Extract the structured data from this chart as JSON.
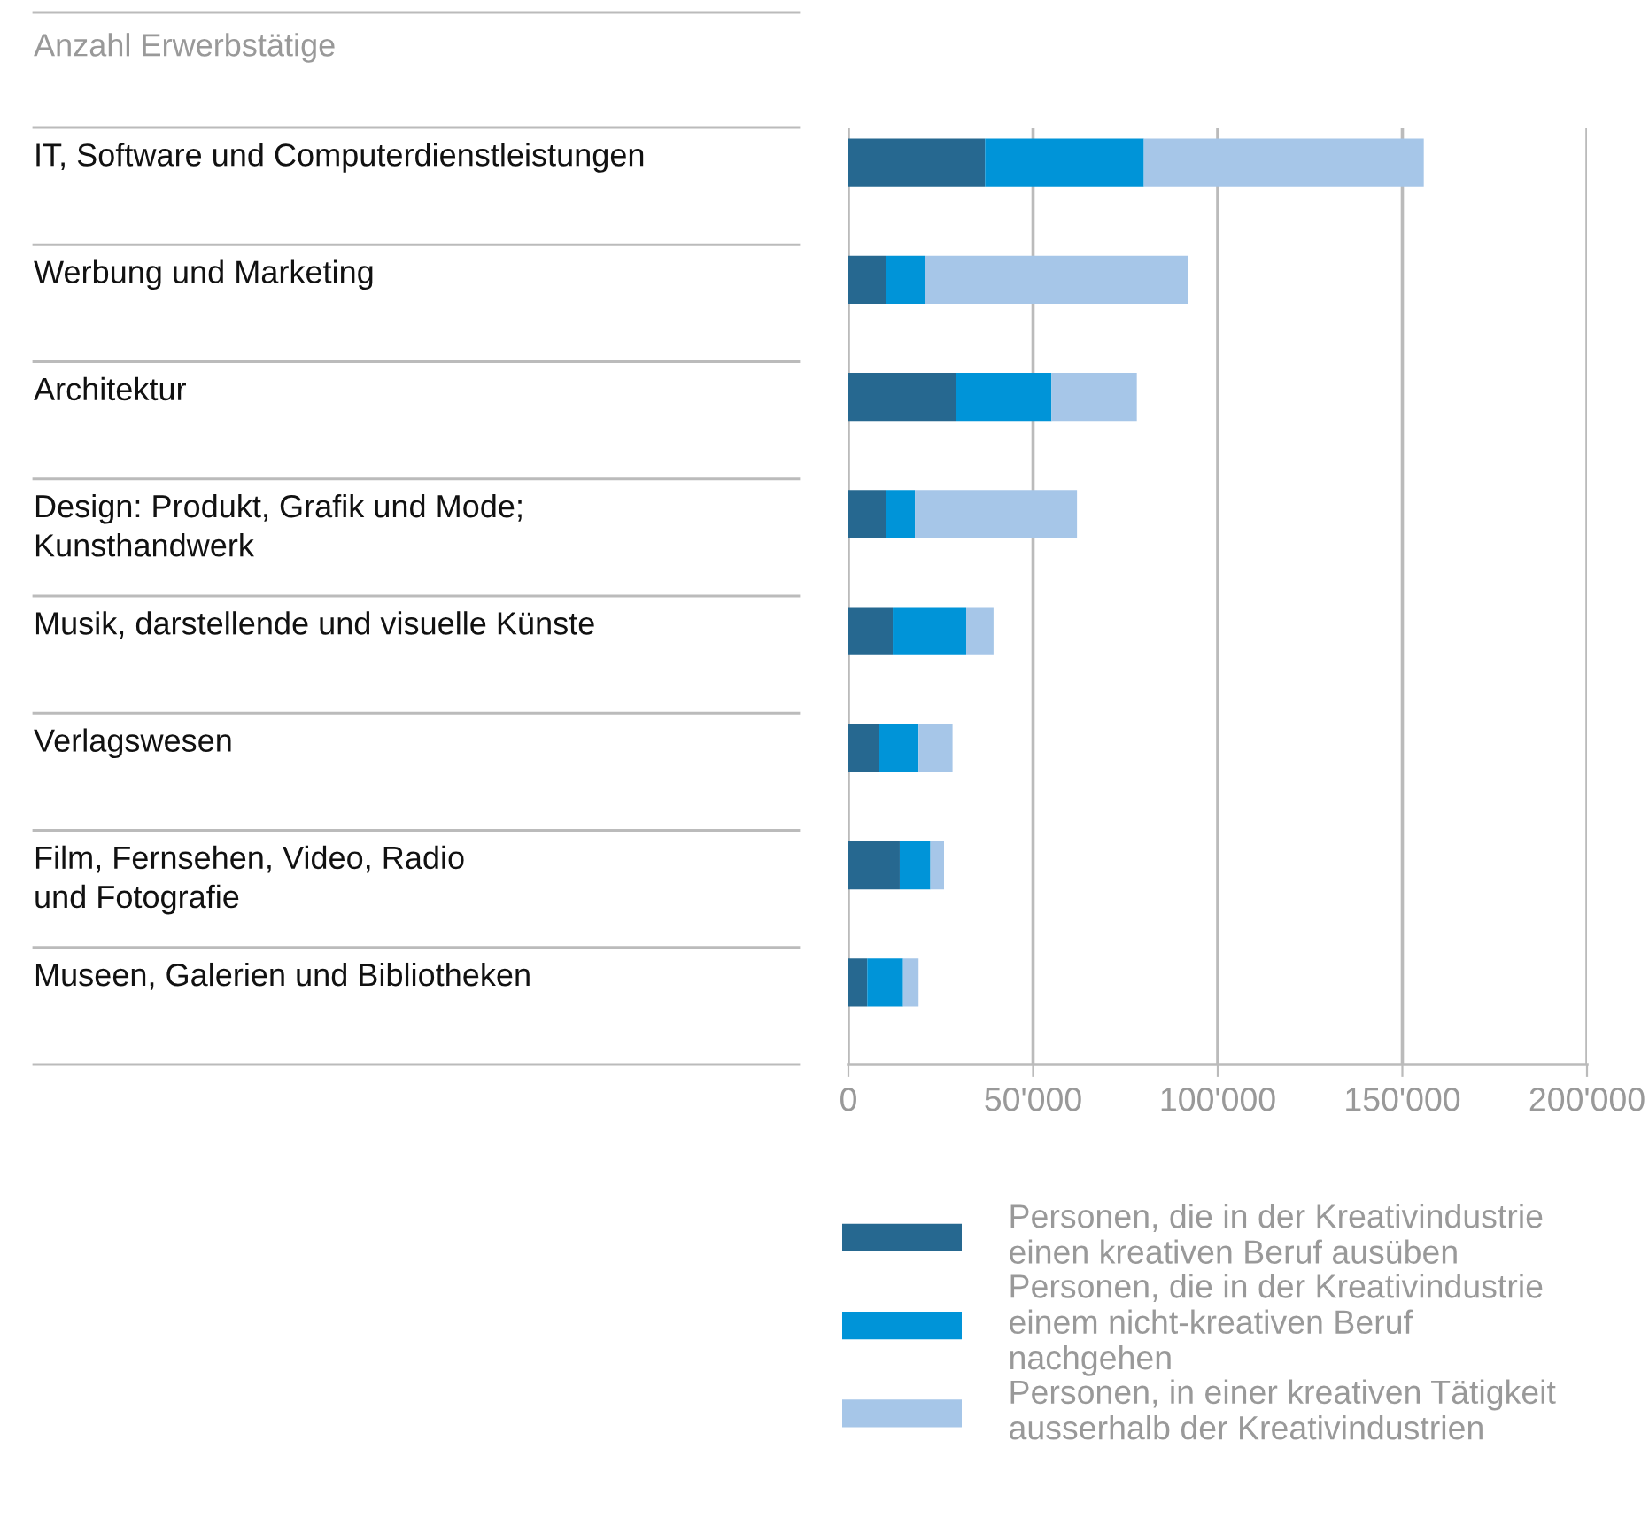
{
  "chart_data": {
    "type": "bar",
    "orientation": "horizontal",
    "stacked": true,
    "title": "Anzahl Erwerbstätige",
    "categories": [
      "IT, Software und Computerdienstleistungen",
      "Werbung und Marketing",
      "Architektur",
      "Design: Produkt, Grafik und Mode;\nKunsthandwerk",
      "Musik, darstellende und visuelle Künste",
      "Verlagswesen",
      "Film, Fernsehen, Video, Radio\nund Fotografie",
      "Museen, Galerien und Bibliotheken"
    ],
    "series": [
      {
        "name": "Personen, die in der Kreativindustrie\neinen kreativen Beruf ausüben",
        "color": "#266890",
        "values": [
          37000,
          10200,
          29100,
          10200,
          12000,
          8300,
          13900,
          5100
        ]
      },
      {
        "name": "Personen, die in der Kreativindustrie\neinem nicht-kreativen Beruf\nnachgehen",
        "color": "#0094d8",
        "values": [
          43000,
          10600,
          25900,
          7800,
          19900,
          10700,
          8300,
          9700
        ]
      },
      {
        "name": "Personen, in einer kreativen Tätigkeit\nausserhalb der Kreativindustrien",
        "color": "#a6c6e8",
        "values": [
          75800,
          71200,
          23100,
          43900,
          7400,
          9200,
          3700,
          4200
        ]
      }
    ],
    "xlim": [
      0,
      200000
    ],
    "xticks": [
      0,
      {
        "value": 50000,
        "label": "50'000"
      },
      {
        "value": 100000,
        "label": "100'000"
      },
      {
        "value": 150000,
        "label": "150'000"
      },
      {
        "value": 200000,
        "label": "200'000"
      }
    ],
    "grid": "x",
    "legend": "bottom"
  }
}
